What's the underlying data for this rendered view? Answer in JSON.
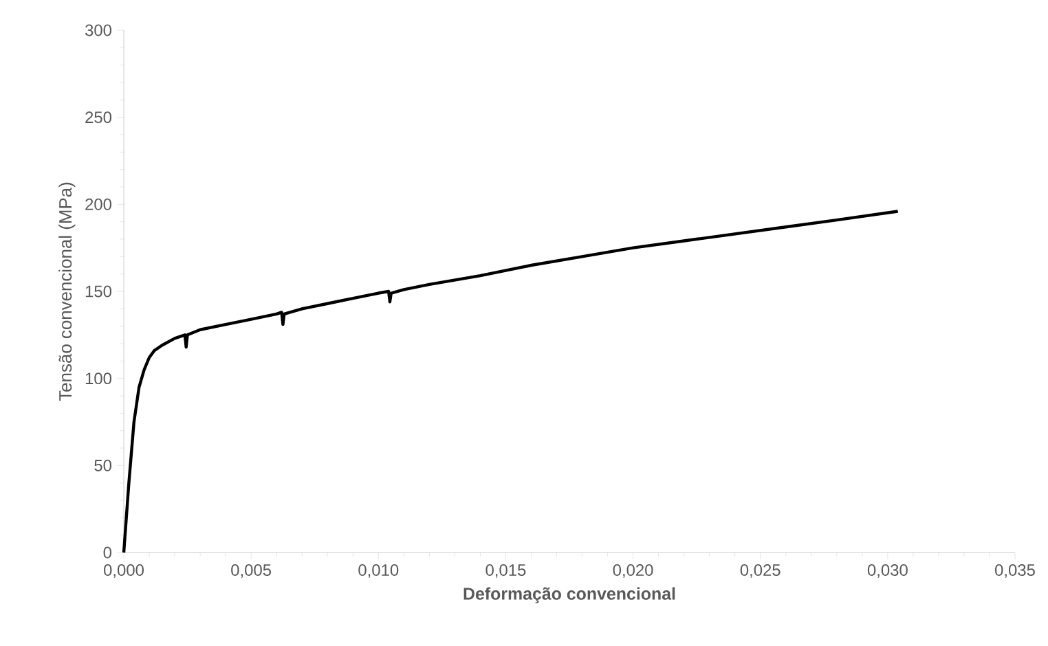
{
  "chart_data": {
    "type": "line",
    "xlabel": "Deformação convencional",
    "ylabel": "Tensão convencional (MPa)",
    "xlim": [
      0,
      0.035
    ],
    "ylim": [
      0,
      300
    ],
    "xticks": [
      {
        "value": 0,
        "label": "0,000"
      },
      {
        "value": 0.005,
        "label": "0,005"
      },
      {
        "value": 0.01,
        "label": "0,010"
      },
      {
        "value": 0.015,
        "label": "0,015"
      },
      {
        "value": 0.02,
        "label": "0,020"
      },
      {
        "value": 0.025,
        "label": "0,025"
      },
      {
        "value": 0.03,
        "label": "0,030"
      },
      {
        "value": 0.035,
        "label": "0,035"
      }
    ],
    "yticks": [
      0,
      50,
      100,
      150,
      200,
      250,
      300
    ],
    "grid": false,
    "marker": "none",
    "line_style": "solid",
    "series": [
      {
        "color": "#000000",
        "x": [
          0,
          0.0002,
          0.0004,
          0.0006,
          0.0008,
          0.001,
          0.0012,
          0.0015,
          0.002,
          0.0024,
          0.00245,
          0.0025,
          0.003,
          0.004,
          0.005,
          0.006,
          0.0062,
          0.00625,
          0.0063,
          0.007,
          0.008,
          0.009,
          0.01,
          0.0104,
          0.01045,
          0.0105,
          0.011,
          0.012,
          0.014,
          0.016,
          0.018,
          0.02,
          0.022,
          0.024,
          0.026,
          0.028,
          0.0304
        ],
        "values": [
          0,
          40,
          75,
          95,
          105,
          112,
          116,
          119,
          123,
          125,
          118,
          125,
          128,
          131,
          134,
          137,
          138,
          131,
          137,
          140,
          143,
          146,
          149,
          150,
          144,
          149,
          151,
          154,
          159,
          165,
          170,
          175,
          179,
          183,
          187,
          191,
          196
        ]
      }
    ]
  }
}
